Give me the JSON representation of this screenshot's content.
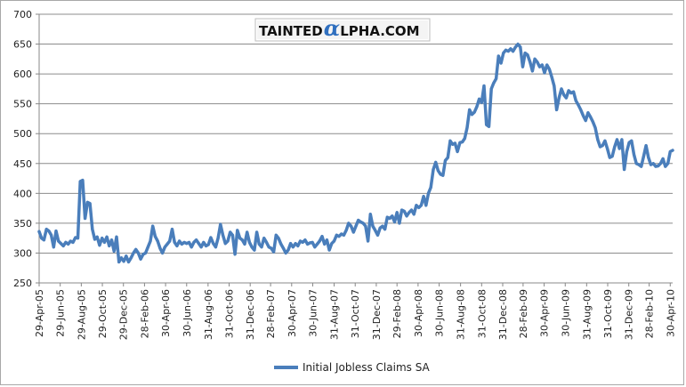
{
  "logo": {
    "text_before": "TAINTED",
    "alpha": "α",
    "text_after": "LPHA.COM",
    "alpha_color": "#2f6fbf"
  },
  "chart_data": {
    "type": "line",
    "title": "",
    "xlabel": "",
    "ylabel": "",
    "ylim": [
      250,
      700
    ],
    "yticks": [
      250,
      300,
      350,
      400,
      450,
      500,
      550,
      600,
      650,
      700
    ],
    "grid": "horizontal",
    "legend_position": "bottom-center",
    "x_start": "2005-04-29",
    "x_end": "2010-05-07",
    "xtick_labels": [
      "29-Apr-05",
      "29-Jun-05",
      "29-Aug-05",
      "29-Oct-05",
      "29-Dec-05",
      "28-Feb-06",
      "30-Apr-06",
      "30-Jun-06",
      "31-Aug-06",
      "31-Oct-06",
      "31-Dec-06",
      "28-Feb-07",
      "30-Apr-07",
      "30-Jun-07",
      "31-Aug-07",
      "31-Oct-07",
      "31-Dec-07",
      "29-Feb-08",
      "30-Apr-08",
      "30-Jun-08",
      "31-Aug-08",
      "31-Oct-08",
      "31-Dec-08",
      "28-Feb-09",
      "30-Apr-09",
      "30-Jun-09",
      "31-Aug-09",
      "31-Oct-09",
      "31-Dec-09",
      "28-Feb-10",
      "30-Apr-10"
    ],
    "xtick_dates": [
      "2005-04-29",
      "2005-06-29",
      "2005-08-29",
      "2005-10-29",
      "2005-12-29",
      "2006-02-28",
      "2006-04-30",
      "2006-06-30",
      "2006-08-31",
      "2006-10-31",
      "2006-12-31",
      "2007-02-28",
      "2007-04-30",
      "2007-06-30",
      "2007-08-31",
      "2007-10-31",
      "2007-12-31",
      "2008-02-29",
      "2008-04-30",
      "2008-06-30",
      "2008-08-31",
      "2008-10-31",
      "2008-12-31",
      "2009-02-28",
      "2009-04-30",
      "2009-06-30",
      "2009-08-31",
      "2009-10-31",
      "2009-12-31",
      "2010-02-28",
      "2010-04-30"
    ],
    "series": [
      {
        "name": "Initial Jobless Claims SA",
        "color": "#4a7ebb",
        "points": [
          [
            "2005-04-29",
            336
          ],
          [
            "2005-05-06",
            325
          ],
          [
            "2005-05-13",
            322
          ],
          [
            "2005-05-20",
            340
          ],
          [
            "2005-05-27",
            337
          ],
          [
            "2005-06-03",
            330
          ],
          [
            "2005-06-10",
            310
          ],
          [
            "2005-06-17",
            337
          ],
          [
            "2005-06-24",
            320
          ],
          [
            "2005-07-01",
            316
          ],
          [
            "2005-07-08",
            312
          ],
          [
            "2005-07-15",
            318
          ],
          [
            "2005-07-22",
            315
          ],
          [
            "2005-07-29",
            320
          ],
          [
            "2005-08-05",
            318
          ],
          [
            "2005-08-12",
            326
          ],
          [
            "2005-08-19",
            325
          ],
          [
            "2005-08-26",
            420
          ],
          [
            "2005-09-02",
            422
          ],
          [
            "2005-09-09",
            358
          ],
          [
            "2005-09-16",
            385
          ],
          [
            "2005-09-23",
            383
          ],
          [
            "2005-09-30",
            340
          ],
          [
            "2005-10-07",
            323
          ],
          [
            "2005-10-14",
            327
          ],
          [
            "2005-10-21",
            313
          ],
          [
            "2005-10-28",
            325
          ],
          [
            "2005-11-04",
            318
          ],
          [
            "2005-11-11",
            327
          ],
          [
            "2005-11-18",
            312
          ],
          [
            "2005-11-25",
            322
          ],
          [
            "2005-12-02",
            303
          ],
          [
            "2005-12-09",
            327
          ],
          [
            "2005-12-16",
            285
          ],
          [
            "2005-12-23",
            292
          ],
          [
            "2005-12-30",
            286
          ],
          [
            "2006-01-06",
            295
          ],
          [
            "2006-01-13",
            285
          ],
          [
            "2006-01-20",
            292
          ],
          [
            "2006-01-27",
            300
          ],
          [
            "2006-02-03",
            306
          ],
          [
            "2006-02-10",
            300
          ],
          [
            "2006-02-17",
            290
          ],
          [
            "2006-02-24",
            298
          ],
          [
            "2006-03-03",
            300
          ],
          [
            "2006-03-10",
            310
          ],
          [
            "2006-03-17",
            320
          ],
          [
            "2006-03-24",
            345
          ],
          [
            "2006-03-31",
            328
          ],
          [
            "2006-04-07",
            320
          ],
          [
            "2006-04-14",
            308
          ],
          [
            "2006-04-21",
            300
          ],
          [
            "2006-04-28",
            310
          ],
          [
            "2006-05-05",
            315
          ],
          [
            "2006-05-12",
            320
          ],
          [
            "2006-05-19",
            340
          ],
          [
            "2006-05-26",
            318
          ],
          [
            "2006-06-02",
            312
          ],
          [
            "2006-06-09",
            320
          ],
          [
            "2006-06-16",
            315
          ],
          [
            "2006-06-23",
            318
          ],
          [
            "2006-06-30",
            316
          ],
          [
            "2006-07-07",
            318
          ],
          [
            "2006-07-14",
            310
          ],
          [
            "2006-07-21",
            318
          ],
          [
            "2006-07-28",
            322
          ],
          [
            "2006-08-04",
            316
          ],
          [
            "2006-08-11",
            310
          ],
          [
            "2006-08-18",
            318
          ],
          [
            "2006-08-25",
            312
          ],
          [
            "2006-09-01",
            314
          ],
          [
            "2006-09-08",
            326
          ],
          [
            "2006-09-15",
            316
          ],
          [
            "2006-09-22",
            310
          ],
          [
            "2006-09-29",
            325
          ],
          [
            "2006-10-06",
            348
          ],
          [
            "2006-10-13",
            330
          ],
          [
            "2006-10-20",
            316
          ],
          [
            "2006-10-27",
            320
          ],
          [
            "2006-11-03",
            335
          ],
          [
            "2006-11-10",
            330
          ],
          [
            "2006-11-17",
            298
          ],
          [
            "2006-11-24",
            338
          ],
          [
            "2006-12-01",
            325
          ],
          [
            "2006-12-08",
            322
          ],
          [
            "2006-12-15",
            315
          ],
          [
            "2006-12-22",
            335
          ],
          [
            "2006-12-29",
            318
          ],
          [
            "2007-01-05",
            310
          ],
          [
            "2007-01-12",
            305
          ],
          [
            "2007-01-19",
            335
          ],
          [
            "2007-01-26",
            315
          ],
          [
            "2007-02-02",
            310
          ],
          [
            "2007-02-09",
            325
          ],
          [
            "2007-02-16",
            318
          ],
          [
            "2007-02-23",
            310
          ],
          [
            "2007-03-02",
            308
          ],
          [
            "2007-03-09",
            302
          ],
          [
            "2007-03-16",
            330
          ],
          [
            "2007-03-23",
            325
          ],
          [
            "2007-03-30",
            315
          ],
          [
            "2007-04-06",
            308
          ],
          [
            "2007-04-13",
            300
          ],
          [
            "2007-04-20",
            305
          ],
          [
            "2007-04-27",
            316
          ],
          [
            "2007-05-04",
            310
          ],
          [
            "2007-05-11",
            316
          ],
          [
            "2007-05-18",
            312
          ],
          [
            "2007-05-25",
            320
          ],
          [
            "2007-06-01",
            318
          ],
          [
            "2007-06-08",
            322
          ],
          [
            "2007-06-15",
            315
          ],
          [
            "2007-06-22",
            317
          ],
          [
            "2007-06-29",
            318
          ],
          [
            "2007-07-06",
            310
          ],
          [
            "2007-07-13",
            315
          ],
          [
            "2007-07-20",
            320
          ],
          [
            "2007-07-27",
            328
          ],
          [
            "2007-08-03",
            315
          ],
          [
            "2007-08-10",
            322
          ],
          [
            "2007-08-17",
            305
          ],
          [
            "2007-08-24",
            316
          ],
          [
            "2007-08-31",
            320
          ],
          [
            "2007-09-07",
            330
          ],
          [
            "2007-09-14",
            328
          ],
          [
            "2007-09-21",
            332
          ],
          [
            "2007-09-28",
            330
          ],
          [
            "2007-10-05",
            338
          ],
          [
            "2007-10-12",
            350
          ],
          [
            "2007-10-19",
            345
          ],
          [
            "2007-10-26",
            335
          ],
          [
            "2007-11-02",
            345
          ],
          [
            "2007-11-09",
            355
          ],
          [
            "2007-11-16",
            352
          ],
          [
            "2007-11-23",
            350
          ],
          [
            "2007-11-30",
            345
          ],
          [
            "2007-12-07",
            320
          ],
          [
            "2007-12-14",
            365
          ],
          [
            "2007-12-21",
            345
          ],
          [
            "2007-12-28",
            338
          ],
          [
            "2008-01-04",
            330
          ],
          [
            "2008-01-11",
            342
          ],
          [
            "2008-01-18",
            345
          ],
          [
            "2008-01-25",
            340
          ],
          [
            "2008-02-01",
            360
          ],
          [
            "2008-02-08",
            358
          ],
          [
            "2008-02-15",
            362
          ],
          [
            "2008-02-22",
            352
          ],
          [
            "2008-02-29",
            368
          ],
          [
            "2008-03-07",
            350
          ],
          [
            "2008-03-14",
            372
          ],
          [
            "2008-03-21",
            370
          ],
          [
            "2008-03-28",
            362
          ],
          [
            "2008-04-04",
            368
          ],
          [
            "2008-04-11",
            372
          ],
          [
            "2008-04-18",
            365
          ],
          [
            "2008-04-25",
            380
          ],
          [
            "2008-05-02",
            376
          ],
          [
            "2008-05-09",
            380
          ],
          [
            "2008-05-16",
            395
          ],
          [
            "2008-05-23",
            380
          ],
          [
            "2008-05-30",
            400
          ],
          [
            "2008-06-06",
            410
          ],
          [
            "2008-06-13",
            440
          ],
          [
            "2008-06-20",
            452
          ],
          [
            "2008-06-27",
            438
          ],
          [
            "2008-07-04",
            432
          ],
          [
            "2008-07-11",
            430
          ],
          [
            "2008-07-18",
            455
          ],
          [
            "2008-07-25",
            460
          ],
          [
            "2008-08-01",
            488
          ],
          [
            "2008-08-08",
            482
          ],
          [
            "2008-08-15",
            484
          ],
          [
            "2008-08-22",
            470
          ],
          [
            "2008-08-29",
            485
          ],
          [
            "2008-09-05",
            486
          ],
          [
            "2008-09-12",
            492
          ],
          [
            "2008-09-19",
            510
          ],
          [
            "2008-09-26",
            540
          ],
          [
            "2008-10-03",
            532
          ],
          [
            "2008-10-10",
            536
          ],
          [
            "2008-10-17",
            545
          ],
          [
            "2008-10-24",
            558
          ],
          [
            "2008-10-31",
            552
          ],
          [
            "2008-11-07",
            580
          ],
          [
            "2008-11-14",
            515
          ],
          [
            "2008-11-21",
            512
          ],
          [
            "2008-11-28",
            575
          ],
          [
            "2008-12-05",
            585
          ],
          [
            "2008-12-12",
            592
          ],
          [
            "2008-12-19",
            630
          ],
          [
            "2008-12-26",
            618
          ],
          [
            "2009-01-02",
            635
          ],
          [
            "2009-01-09",
            640
          ],
          [
            "2009-01-16",
            638
          ],
          [
            "2009-01-23",
            642
          ],
          [
            "2009-01-30",
            638
          ],
          [
            "2009-02-06",
            645
          ],
          [
            "2009-02-13",
            650
          ],
          [
            "2009-02-20",
            645
          ],
          [
            "2009-02-27",
            612
          ],
          [
            "2009-03-06",
            635
          ],
          [
            "2009-03-13",
            632
          ],
          [
            "2009-03-20",
            620
          ],
          [
            "2009-03-27",
            605
          ],
          [
            "2009-04-03",
            625
          ],
          [
            "2009-04-10",
            620
          ],
          [
            "2009-04-17",
            612
          ],
          [
            "2009-04-24",
            615
          ],
          [
            "2009-05-01",
            602
          ],
          [
            "2009-05-08",
            615
          ],
          [
            "2009-05-15",
            608
          ],
          [
            "2009-05-22",
            595
          ],
          [
            "2009-05-29",
            580
          ],
          [
            "2009-06-05",
            540
          ],
          [
            "2009-06-12",
            560
          ],
          [
            "2009-06-19",
            575
          ],
          [
            "2009-06-26",
            565
          ],
          [
            "2009-07-03",
            560
          ],
          [
            "2009-07-10",
            572
          ],
          [
            "2009-07-17",
            568
          ],
          [
            "2009-07-24",
            570
          ],
          [
            "2009-07-31",
            555
          ],
          [
            "2009-08-07",
            548
          ],
          [
            "2009-08-14",
            540
          ],
          [
            "2009-08-21",
            530
          ],
          [
            "2009-08-28",
            522
          ],
          [
            "2009-09-04",
            535
          ],
          [
            "2009-09-11",
            528
          ],
          [
            "2009-09-18",
            520
          ],
          [
            "2009-09-25",
            510
          ],
          [
            "2009-10-02",
            490
          ],
          [
            "2009-10-09",
            478
          ],
          [
            "2009-10-16",
            480
          ],
          [
            "2009-10-23",
            488
          ],
          [
            "2009-10-30",
            475
          ],
          [
            "2009-11-06",
            460
          ],
          [
            "2009-11-13",
            462
          ],
          [
            "2009-11-20",
            478
          ],
          [
            "2009-11-27",
            490
          ],
          [
            "2009-12-04",
            475
          ],
          [
            "2009-12-11",
            490
          ],
          [
            "2009-12-18",
            440
          ],
          [
            "2009-12-25",
            470
          ],
          [
            "2010-01-01",
            485
          ],
          [
            "2010-01-08",
            488
          ],
          [
            "2010-01-15",
            465
          ],
          [
            "2010-01-22",
            450
          ],
          [
            "2010-01-29",
            448
          ],
          [
            "2010-02-05",
            445
          ],
          [
            "2010-02-12",
            462
          ],
          [
            "2010-02-19",
            480
          ],
          [
            "2010-02-26",
            460
          ],
          [
            "2010-03-05",
            448
          ],
          [
            "2010-03-12",
            450
          ],
          [
            "2010-03-19",
            445
          ],
          [
            "2010-03-26",
            446
          ],
          [
            "2010-04-02",
            450
          ],
          [
            "2010-04-09",
            458
          ],
          [
            "2010-04-16",
            445
          ],
          [
            "2010-04-23",
            450
          ],
          [
            "2010-04-30",
            470
          ],
          [
            "2010-05-07",
            472
          ]
        ]
      }
    ]
  }
}
